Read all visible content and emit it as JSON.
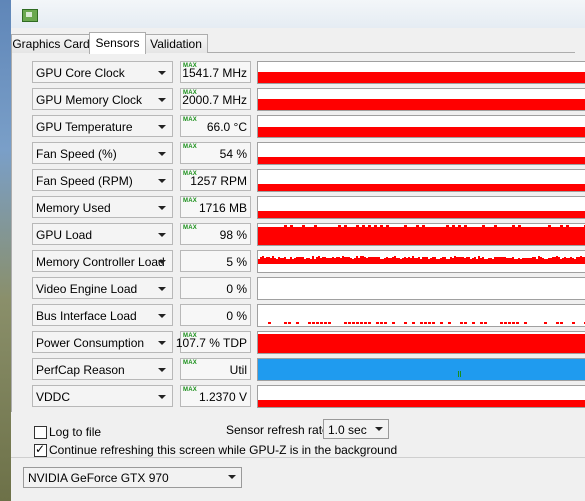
{
  "window": {
    "app_icon": "gpu-z-app-icon"
  },
  "tabs": [
    {
      "label": "Graphics Card",
      "active": false
    },
    {
      "label": "Sensors",
      "active": true
    },
    {
      "label": "Validation",
      "active": false
    }
  ],
  "max_tag": "MAX",
  "colors": {
    "graph_red": "#ff0000",
    "graph_blue": "#1f9bef",
    "perfcap_marker": "#1a8f1a"
  },
  "sensors": [
    {
      "id": "gpu-core-clock",
      "label": "GPU Core Clock",
      "value": "1541.7 MHz",
      "max": true,
      "graph": "red",
      "level": 0.62
    },
    {
      "id": "gpu-memory-clock",
      "label": "GPU Memory Clock",
      "value": "2000.7 MHz",
      "max": true,
      "graph": "red",
      "level": 0.62
    },
    {
      "id": "gpu-temperature",
      "label": "GPU Temperature",
      "value": "66.0 °C",
      "max": true,
      "graph": "red",
      "level": 0.55
    },
    {
      "id": "fan-speed-percent",
      "label": "Fan Speed (%)",
      "value": "54 %",
      "max": true,
      "graph": "red",
      "level": 0.45
    },
    {
      "id": "fan-speed-rpm",
      "label": "Fan Speed (RPM)",
      "value": "1257 RPM",
      "max": true,
      "graph": "red",
      "level": 0.45
    },
    {
      "id": "memory-used",
      "label": "Memory Used",
      "value": "1716 MB",
      "max": true,
      "graph": "red",
      "level": 0.45
    },
    {
      "id": "gpu-load",
      "label": "GPU Load",
      "value": "98 %",
      "max": true,
      "graph": "red-jagged",
      "level": 0.98
    },
    {
      "id": "memory-controller-load",
      "label": "Memory Controller Load",
      "value": "5 %",
      "max": false,
      "graph": "red-noise",
      "level": 0.05
    },
    {
      "id": "video-engine-load",
      "label": "Video Engine Load",
      "value": "0 %",
      "max": false,
      "graph": "empty",
      "level": 0
    },
    {
      "id": "bus-interface-load",
      "label": "Bus Interface Load",
      "value": "0 %",
      "max": false,
      "graph": "red-sparse",
      "level": 0
    },
    {
      "id": "power-consumption",
      "label": "Power Consumption",
      "value": "107.7 % TDP",
      "max": true,
      "graph": "red",
      "level": 0.98
    },
    {
      "id": "perfcap-reason",
      "label": "PerfCap Reason",
      "value": "Util",
      "max": true,
      "graph": "blue",
      "level": 1.0
    },
    {
      "id": "vddc",
      "label": "VDDC",
      "value": "1.2370 V",
      "max": true,
      "graph": "red",
      "level": 0.45
    }
  ],
  "bottom": {
    "log_to_file": {
      "label": "Log to file",
      "checked": false
    },
    "refresh_rate_label": "Sensor refresh rate:",
    "refresh_rate_value": "1.0 sec",
    "continue_refresh": {
      "label": "Continue refreshing this screen while GPU-Z is in the background",
      "checked": true
    },
    "gpu_select": "NVIDIA GeForce GTX 970"
  }
}
